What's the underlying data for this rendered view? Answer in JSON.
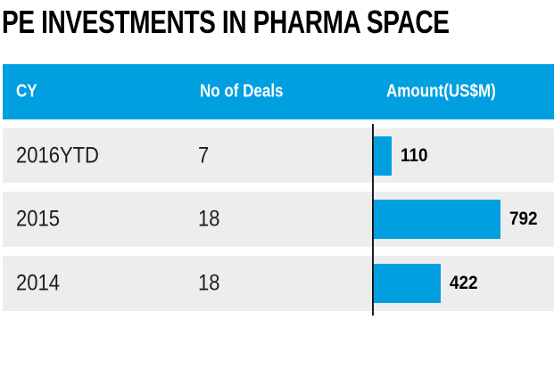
{
  "title": "PE INVESTMENTS IN PHARMA SPACE",
  "table": {
    "columns": [
      {
        "key": "cy",
        "label": "CY"
      },
      {
        "key": "deals",
        "label": "No of Deals"
      },
      {
        "key": "amount",
        "label": "Amount(US$M)"
      }
    ],
    "rows": [
      {
        "cy": "2016YTD",
        "deals": "7",
        "amount": "110"
      },
      {
        "cy": "2015",
        "deals": "18",
        "amount": "792"
      },
      {
        "cy": "2014",
        "deals": "18",
        "amount": "422"
      }
    ]
  },
  "colors": {
    "accent_blue": "#009fe0",
    "row_gray": "#ededed",
    "axis_black": "#1b1b1b",
    "text_dark": "#1d1d1b",
    "header_text": "#ffffff"
  },
  "chart_data": {
    "type": "bar",
    "orientation": "horizontal",
    "title": "PE INVESTMENTS IN PHARMA SPACE",
    "categories": [
      "2016YTD",
      "2015",
      "2014"
    ],
    "series": [
      {
        "name": "No of Deals",
        "values": [
          7,
          18,
          18
        ]
      },
      {
        "name": "Amount(US$M)",
        "values": [
          110,
          792,
          422
        ]
      }
    ],
    "bar_series": "Amount(US$M)",
    "xlim": [
      0,
      800
    ],
    "grid": false,
    "legend": false,
    "bar_color": "#009fe0",
    "row_background": "#ededed",
    "baseline_axis": true
  }
}
